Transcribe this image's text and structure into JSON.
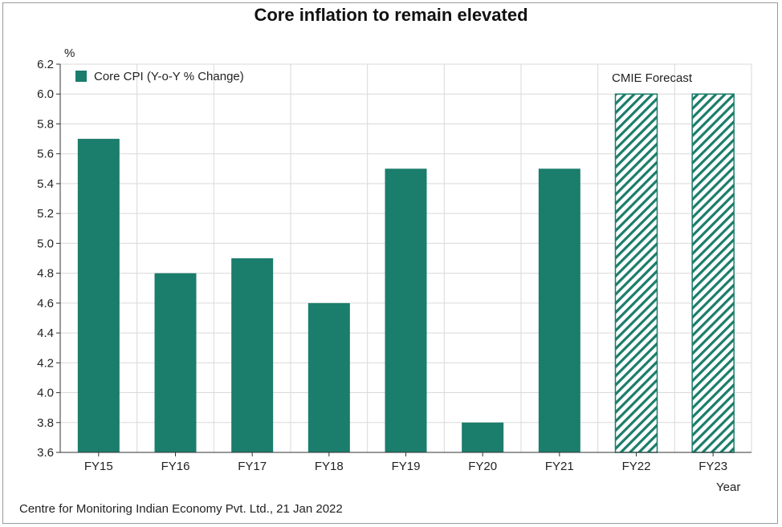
{
  "title": "Core inflation to remain elevated",
  "source": "Centre for Monitoring Indian Economy Pvt. Ltd., 21 Jan 2022",
  "colors": {
    "bar": "#1b7d6b",
    "grid": "#d9d9d9",
    "axis": "#333333"
  },
  "chart_data": {
    "type": "bar",
    "title": "Core inflation to remain elevated",
    "ylabel": "%",
    "xlabel": "Year",
    "categories": [
      "FY15",
      "FY16",
      "FY17",
      "FY18",
      "FY19",
      "FY20",
      "FY21",
      "FY22",
      "FY23"
    ],
    "series": [
      {
        "name": "Core CPI (Y-o-Y % Change)",
        "values": [
          5.7,
          4.8,
          4.9,
          4.6,
          5.5,
          3.8,
          5.5,
          6.0,
          6.0
        ]
      }
    ],
    "forecast_categories": [
      "FY22",
      "FY23"
    ],
    "forecast_label": "CMIE Forecast",
    "ylim": [
      3.6,
      6.2
    ],
    "yticks": [
      "3.6",
      "3.8",
      "4.0",
      "4.2",
      "4.4",
      "4.6",
      "4.8",
      "5.0",
      "5.2",
      "5.4",
      "5.6",
      "5.8",
      "6.0",
      "6.2"
    ],
    "grid": true,
    "legend_position": "top-left"
  }
}
